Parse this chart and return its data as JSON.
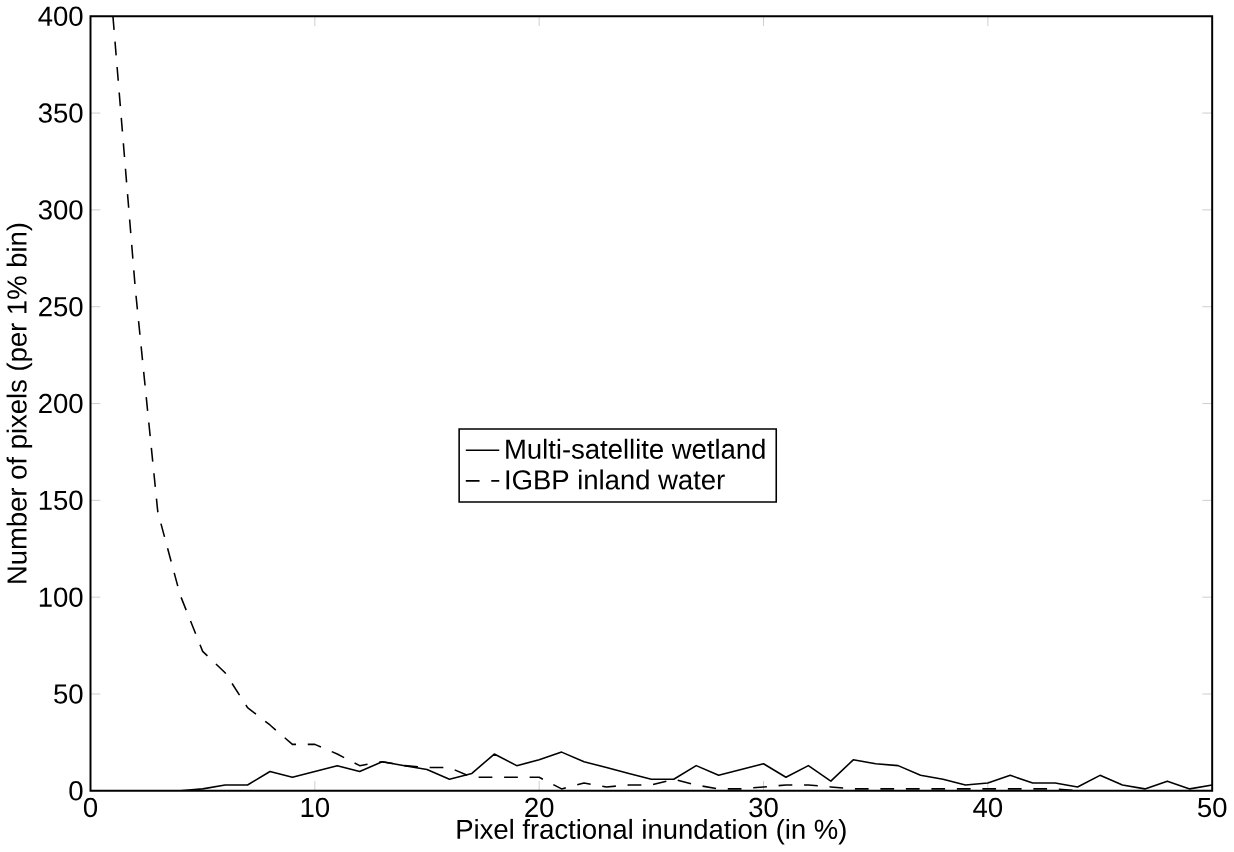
{
  "chart_data": {
    "type": "line",
    "xlabel": "Pixel fractional inundation (in %)",
    "ylabel": "Number of pixels (per 1% bin)",
    "xlim": [
      0,
      50
    ],
    "ylim": [
      0,
      400
    ],
    "xticks": [
      0,
      10,
      20,
      30,
      40,
      50
    ],
    "yticks": [
      0,
      50,
      100,
      150,
      200,
      250,
      300,
      350,
      400
    ],
    "legend": "center",
    "marker": "none",
    "series": [
      {
        "name": "Multi-satellite wetland",
        "color": "#000000",
        "line_style": "solid",
        "x": [
          0,
          1,
          2,
          3,
          4,
          5,
          6,
          7,
          8,
          9,
          10,
          11,
          12,
          13,
          14,
          15,
          16,
          17,
          18,
          19,
          20,
          21,
          22,
          23,
          24,
          25,
          26,
          27,
          28,
          29,
          30,
          31,
          32,
          33,
          34,
          35,
          36,
          37,
          38,
          39,
          40,
          41,
          42,
          43,
          44,
          45,
          46,
          47,
          48,
          49,
          50
        ],
        "values": [
          0,
          0,
          0,
          0,
          0,
          1,
          3,
          3,
          10,
          7,
          10,
          13,
          10,
          15,
          13,
          11,
          6,
          9,
          19,
          13,
          16,
          20,
          15,
          12,
          9,
          6,
          6,
          13,
          8,
          11,
          14,
          7,
          13,
          5,
          16,
          14,
          13,
          8,
          6,
          3,
          4,
          8,
          4,
          4,
          2,
          8,
          3,
          1,
          5,
          1,
          3
        ]
      },
      {
        "name": "IGBP inland water",
        "color": "#000000",
        "line_style": "dashed",
        "x": [
          1,
          2,
          3,
          4,
          5,
          6,
          7,
          8,
          9,
          10,
          11,
          12,
          13,
          14,
          15,
          16,
          17,
          18,
          19,
          20,
          21,
          22,
          23,
          24,
          25,
          26,
          27,
          28,
          29,
          30,
          31,
          32,
          33,
          34,
          35,
          36,
          37,
          38,
          39,
          40,
          41,
          42,
          43,
          44,
          45,
          46,
          47,
          48,
          49,
          50
        ],
        "values": [
          400,
          259,
          144,
          101,
          72,
          61,
          43,
          34,
          24,
          24,
          19,
          13,
          15,
          13,
          12,
          12,
          7,
          7,
          7,
          7,
          1,
          4,
          2,
          3,
          3,
          6,
          3,
          1,
          1,
          2,
          3,
          3,
          2,
          1,
          1,
          1,
          1,
          1,
          1,
          1,
          1,
          1,
          1,
          0,
          0,
          0,
          0,
          0,
          0,
          0
        ]
      }
    ]
  }
}
